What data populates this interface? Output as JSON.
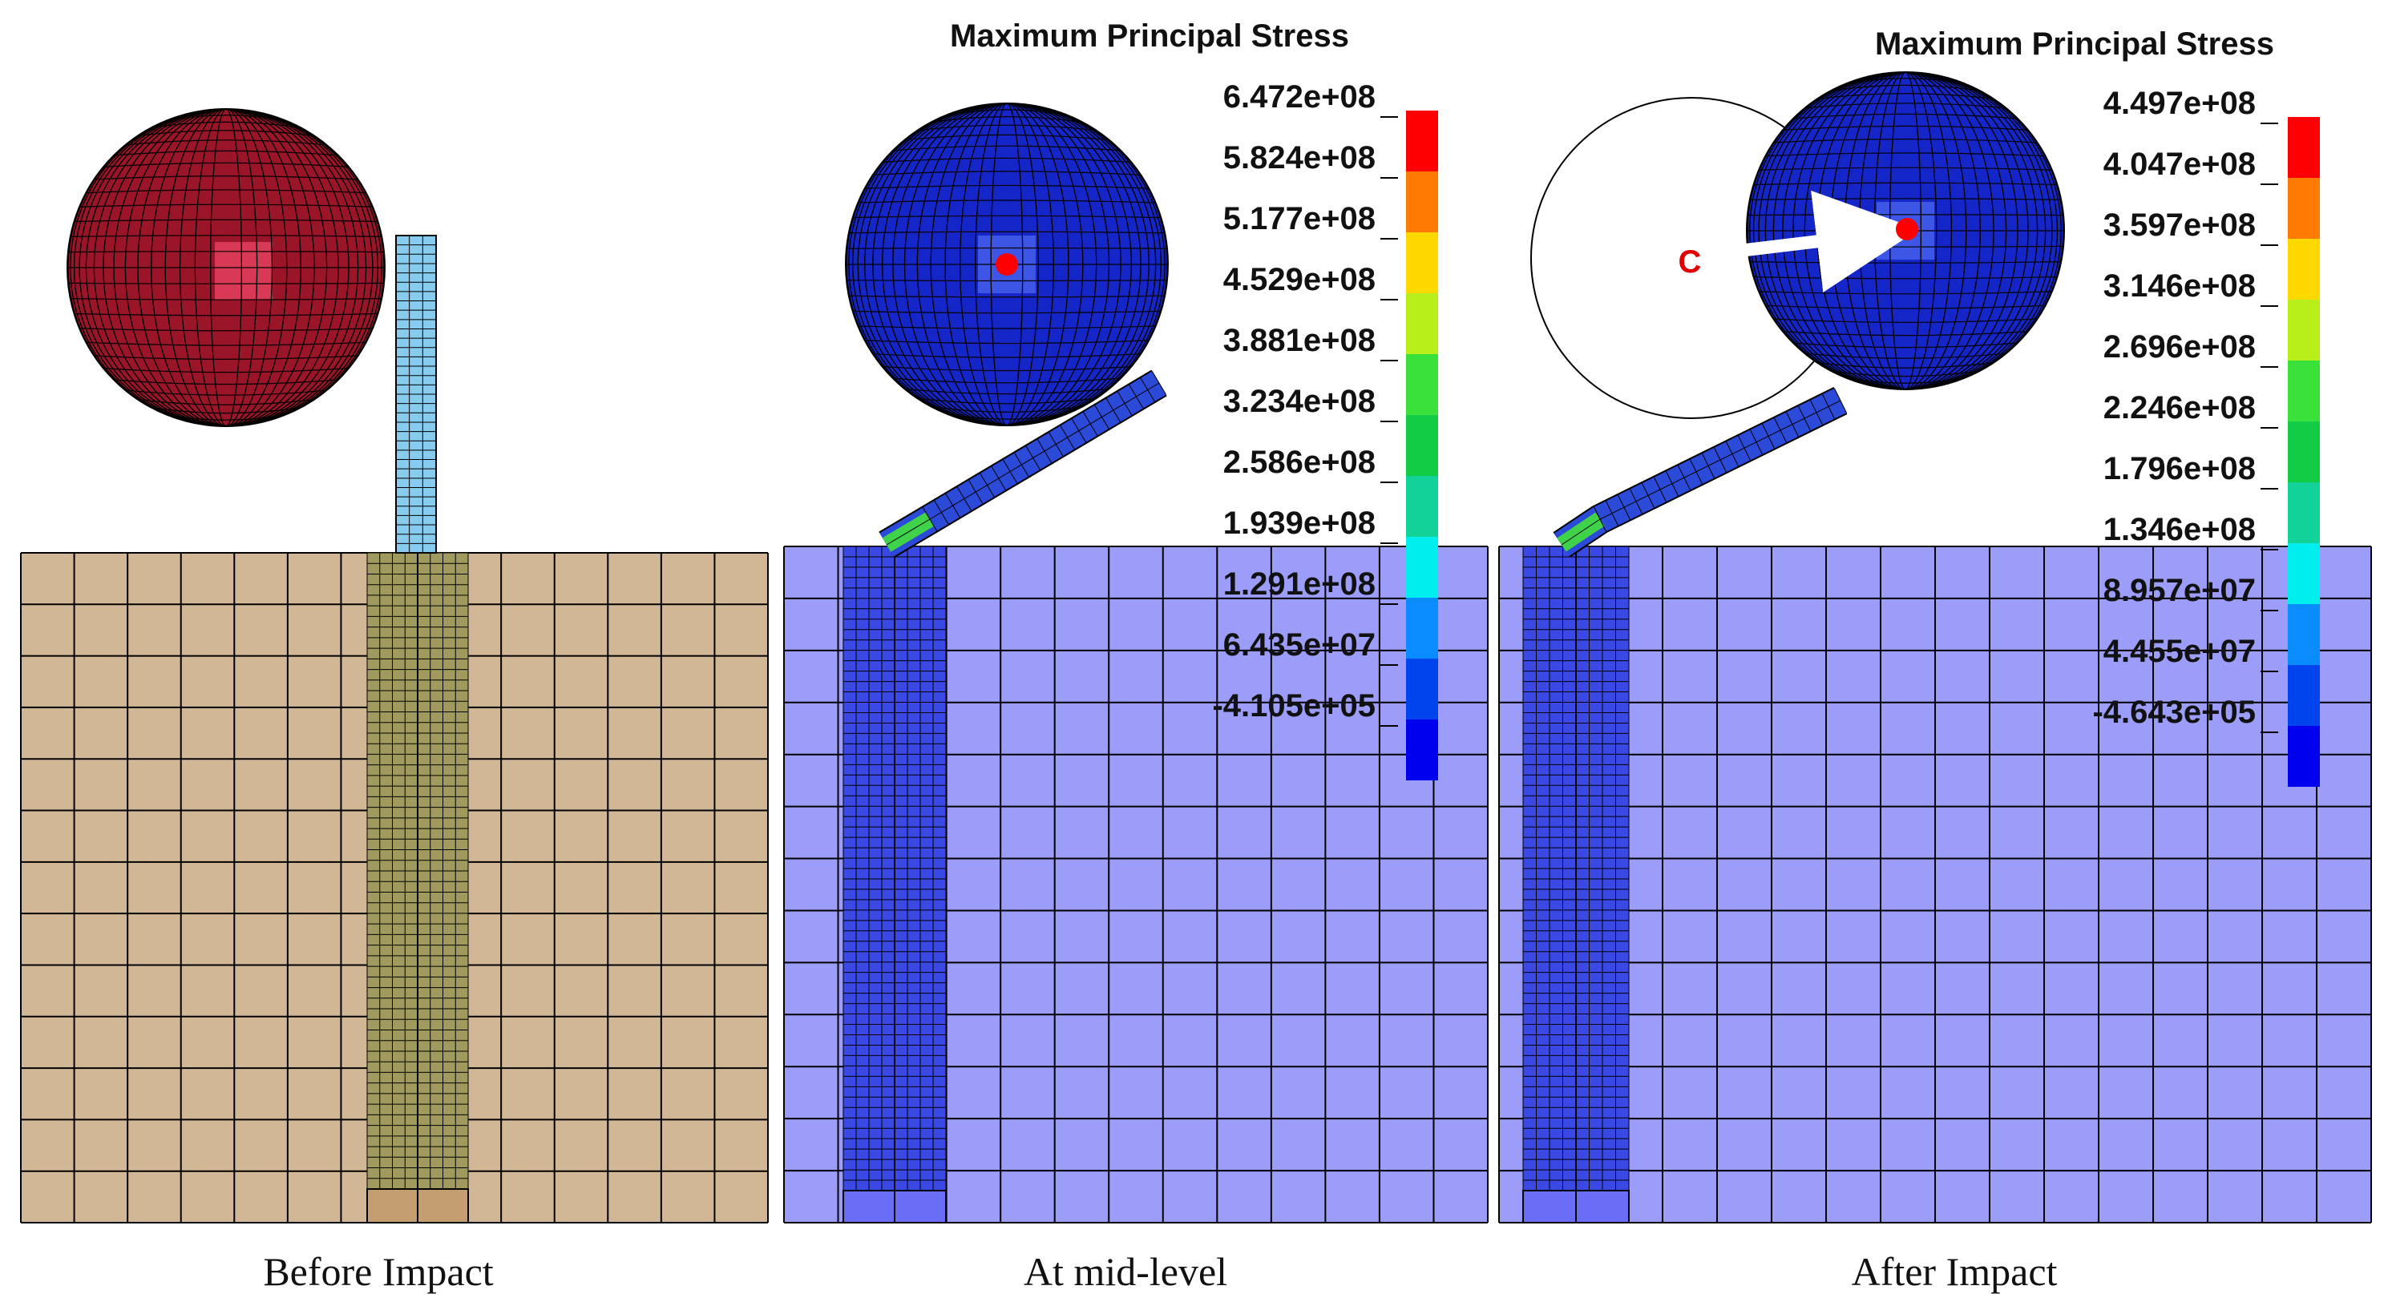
{
  "panels": [
    {
      "id": "before-impact",
      "caption": "Before Impact",
      "title": "",
      "legend_values": []
    },
    {
      "id": "mid-level",
      "caption": "At mid-level",
      "title": "Maximum Principal Stress",
      "legend_values": [
        "6.472e+08",
        "5.824e+08",
        "5.177e+08",
        "4.529e+08",
        "3.881e+08",
        "3.234e+08",
        "2.586e+08",
        "1.939e+08",
        "1.291e+08",
        "6.435e+07",
        "-4.105e+05"
      ]
    },
    {
      "id": "after-impact",
      "caption": "After Impact",
      "title": "Maximum Principal Stress",
      "legend_values": [
        "4.497e+08",
        "4.047e+08",
        "3.597e+08",
        "3.146e+08",
        "2.696e+08",
        "2.246e+08",
        "1.796e+08",
        "1.346e+08",
        "8.957e+07",
        "4.455e+07",
        "-4.643e+05"
      ]
    }
  ],
  "center_marker_label": "C",
  "legend_colors": [
    "#ff0000",
    "#ff7a00",
    "#ffd800",
    "#b8ee1a",
    "#3ae13a",
    "#11cc44",
    "#12d29a",
    "#00eeee",
    "#0a8cff",
    "#0044ee",
    "#0000ee"
  ],
  "colors": {
    "ball_before": "#9b1528",
    "ball_before_highlight": "#d83a55",
    "ball_after": "#1526c8",
    "rod_before": "#87cbee",
    "soil_before": "#d2b797",
    "pile_before": "#a19a5e",
    "pile_base_before": "#c49d70",
    "soil_after": "#9c9cf9",
    "pile_after": "#3a48e4",
    "pile_base_after": "#6a6ef6",
    "center_dot": "#ff0000",
    "mesh_line": "#000000"
  }
}
